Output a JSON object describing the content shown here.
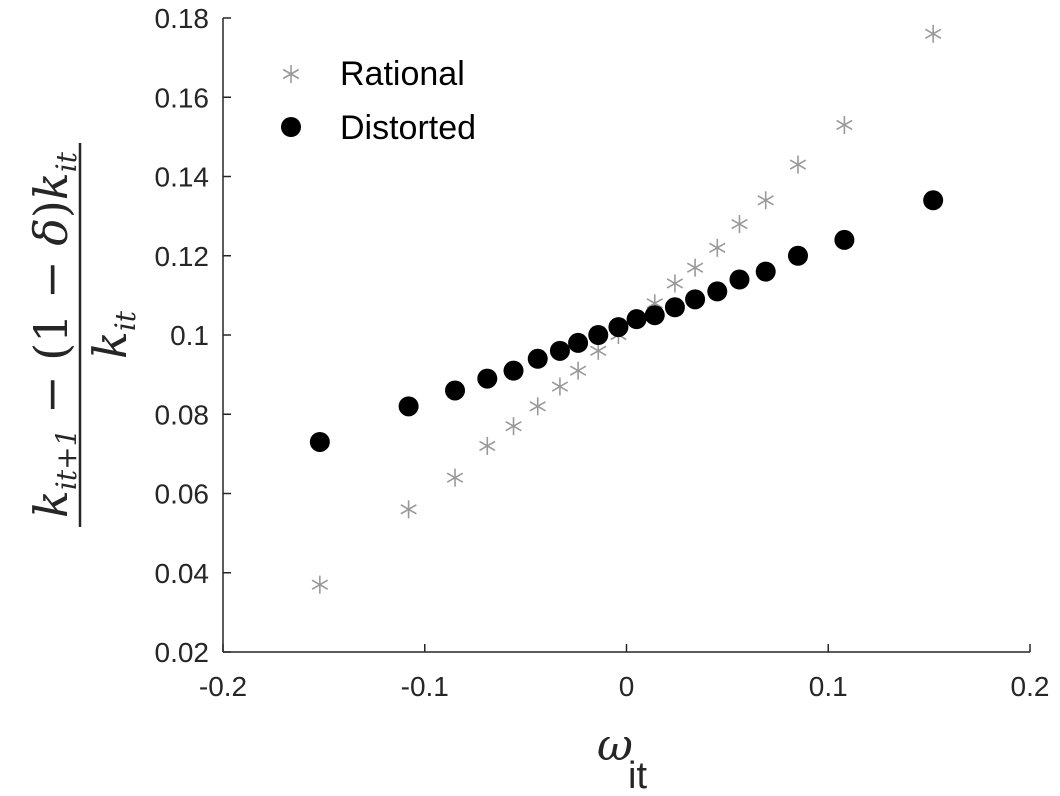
{
  "chart_data": {
    "type": "scatter",
    "xlim": [
      -0.2,
      0.2
    ],
    "ylim": [
      0.02,
      0.18
    ],
    "xticks": [
      "-0.2",
      "-0.1",
      "0",
      "0.1",
      "0.2"
    ],
    "xtick_values": [
      -0.2,
      -0.1,
      0,
      0.1,
      0.2
    ],
    "yticks": [
      "0.02",
      "0.04",
      "0.06",
      "0.08",
      "0.1",
      "0.12",
      "0.14",
      "0.16",
      "0.18"
    ],
    "ytick_values": [
      0.02,
      0.04,
      0.06,
      0.08,
      0.1,
      0.12,
      0.14,
      0.16,
      0.18
    ],
    "xlabel": {
      "symbol": "ω",
      "subscript": "it"
    },
    "ylabel": {
      "numerator": [
        "k",
        "it+1",
        " − (1 − ",
        "δ",
        ")",
        "k",
        "it"
      ],
      "denominator": [
        "k",
        "it"
      ]
    },
    "grid": false,
    "box": false,
    "legend_position": "top-left",
    "series": [
      {
        "name": "Rational",
        "marker": "asterisk",
        "color": "#999999",
        "points": [
          [
            -0.152,
            0.037
          ],
          [
            -0.108,
            0.056
          ],
          [
            -0.085,
            0.064
          ],
          [
            -0.069,
            0.072
          ],
          [
            -0.056,
            0.077
          ],
          [
            -0.044,
            0.082
          ],
          [
            -0.033,
            0.087
          ],
          [
            -0.024,
            0.091
          ],
          [
            -0.014,
            0.096
          ],
          [
            -0.004,
            0.1
          ],
          [
            0.005,
            0.104
          ],
          [
            0.014,
            0.108
          ],
          [
            0.024,
            0.113
          ],
          [
            0.034,
            0.117
          ],
          [
            0.045,
            0.122
          ],
          [
            0.056,
            0.128
          ],
          [
            0.069,
            0.134
          ],
          [
            0.085,
            0.143
          ],
          [
            0.108,
            0.153
          ],
          [
            0.152,
            0.176
          ]
        ]
      },
      {
        "name": "Distorted",
        "marker": "filled-circle",
        "color": "#000000",
        "points": [
          [
            -0.152,
            0.073
          ],
          [
            -0.108,
            0.082
          ],
          [
            -0.085,
            0.086
          ],
          [
            -0.069,
            0.089
          ],
          [
            -0.056,
            0.091
          ],
          [
            -0.044,
            0.094
          ],
          [
            -0.033,
            0.096
          ],
          [
            -0.024,
            0.098
          ],
          [
            -0.014,
            0.1
          ],
          [
            -0.004,
            0.102
          ],
          [
            0.005,
            0.104
          ],
          [
            0.014,
            0.105
          ],
          [
            0.024,
            0.107
          ],
          [
            0.034,
            0.109
          ],
          [
            0.045,
            0.111
          ],
          [
            0.056,
            0.114
          ],
          [
            0.069,
            0.116
          ],
          [
            0.085,
            0.12
          ],
          [
            0.108,
            0.124
          ],
          [
            0.152,
            0.134
          ]
        ]
      }
    ]
  }
}
